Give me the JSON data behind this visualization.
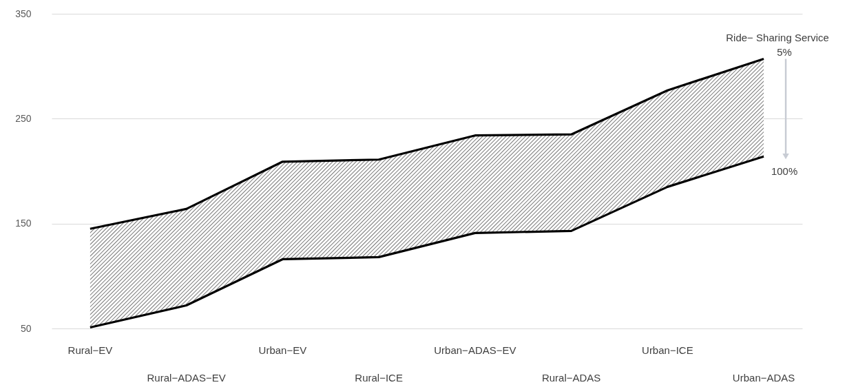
{
  "chart_data": {
    "type": "line",
    "categories": [
      "Rural−EV",
      "Rural−ADAS−EV",
      "Urban−EV",
      "Rural−ICE",
      "Urban−ADAS−EV",
      "Rural−ADAS",
      "Urban−ICE",
      "Urban−ADAS"
    ],
    "series": [
      {
        "name": "5%",
        "color": "#000000",
        "values": [
          145,
          164,
          209,
          211,
          234,
          235,
          277,
          307
        ],
        "lower": [
          51,
          72,
          116,
          118,
          141,
          143,
          185,
          214
        ],
        "upper": [
          145,
          164,
          209,
          211,
          234,
          235,
          277,
          307
        ]
      },
      {
        "name": "100%",
        "color": "#000000",
        "values": [
          51,
          72,
          116,
          118,
          141,
          143,
          185,
          214
        ]
      }
    ],
    "legend_title": "Ride− Sharing Service",
    "ylim": [
      50,
      350
    ],
    "yticks": [
      50,
      150,
      250,
      350
    ],
    "grid": "y",
    "legend": "right",
    "marker": "none",
    "line_style": "solid"
  }
}
